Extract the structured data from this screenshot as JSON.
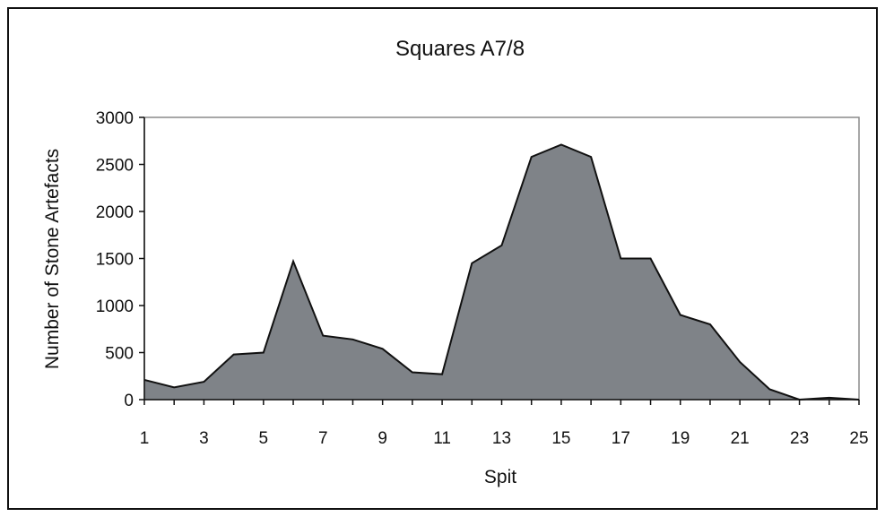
{
  "chart_data": {
    "type": "area",
    "title": "Squares A7/8",
    "xlabel": "Spit",
    "ylabel": "Number of Stone Artefacts",
    "x": [
      1,
      2,
      3,
      4,
      5,
      6,
      7,
      8,
      9,
      10,
      11,
      12,
      13,
      14,
      15,
      16,
      17,
      18,
      19,
      20,
      21,
      22,
      23,
      24,
      25
    ],
    "values": [
      210,
      130,
      190,
      480,
      500,
      1470,
      680,
      640,
      540,
      290,
      270,
      1450,
      1640,
      2580,
      2710,
      2580,
      1500,
      1500,
      900,
      800,
      400,
      110,
      0,
      20,
      0
    ],
    "x_ticks": [
      1,
      3,
      5,
      7,
      9,
      11,
      13,
      15,
      17,
      19,
      21,
      23,
      25
    ],
    "y_ticks": [
      0,
      500,
      1000,
      1500,
      2000,
      2500,
      3000
    ],
    "xlim": [
      1,
      25
    ],
    "ylim": [
      0,
      3000
    ],
    "grid": false,
    "legend": "none",
    "colors": {
      "fill": "#7f8388",
      "line": "#111111",
      "plot_border": "#8a8a8a"
    }
  }
}
